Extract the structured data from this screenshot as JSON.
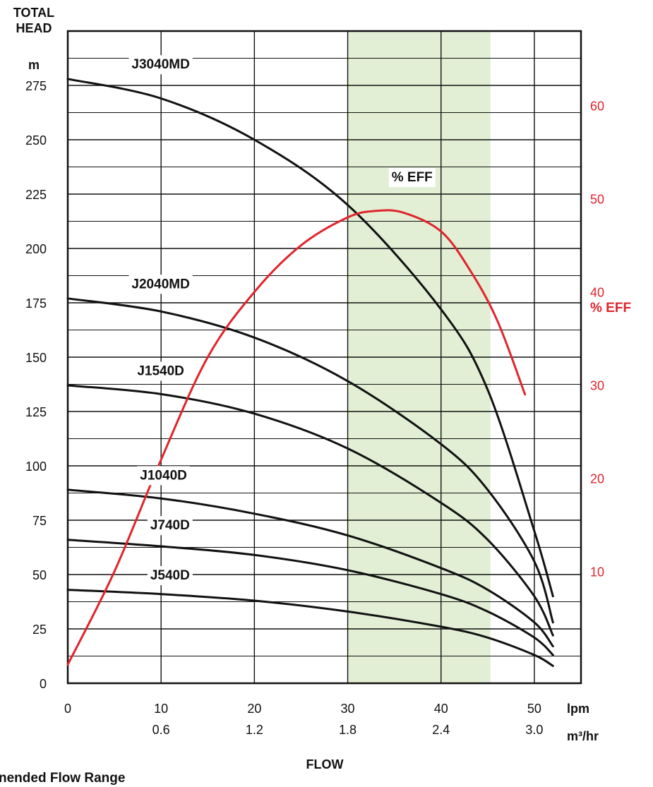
{
  "chart_data": {
    "type": "line",
    "y_axis": {
      "title_lines": [
        "TOTAL",
        "HEAD"
      ],
      "unit": "m",
      "ticks": [
        0,
        25,
        50,
        75,
        100,
        125,
        150,
        175,
        200,
        225,
        250,
        275
      ],
      "range": [
        0,
        300
      ]
    },
    "y2_axis": {
      "title": "% EFF",
      "ticks": [
        10,
        20,
        30,
        40,
        50,
        60
      ],
      "range": [
        -2,
        68
      ]
    },
    "x_axis": {
      "title": "FLOW",
      "unit_primary": "lpm",
      "unit_secondary": "m³/hr",
      "ticks_primary": [
        0,
        10,
        20,
        30,
        40,
        50
      ],
      "ticks_secondary": [
        "0.6",
        "1.2",
        "1.8",
        "2.4",
        "3.0"
      ],
      "range": [
        0,
        55
      ]
    },
    "recommended_flow_range": [
      30,
      45.3
    ],
    "series": [
      {
        "name": "J3040MD",
        "x": [
          0,
          10,
          20,
          30,
          40,
          45,
          50,
          52
        ],
        "y": [
          278,
          269,
          250,
          220,
          172,
          135,
          70,
          40
        ],
        "label_x": 3.3,
        "label_y": 285
      },
      {
        "name": "J2040MD",
        "x": [
          0,
          10,
          20,
          30,
          40,
          45,
          50,
          52
        ],
        "y": [
          177,
          171,
          159,
          139,
          110,
          89,
          56,
          28
        ],
        "label_x": 3.3,
        "label_y": 184
      },
      {
        "name": "J1540D",
        "x": [
          0,
          10,
          20,
          30,
          40,
          45,
          50,
          52
        ],
        "y": [
          137,
          133,
          124,
          108,
          83,
          66,
          40,
          22
        ],
        "label_x": 3.3,
        "label_y": 144
      },
      {
        "name": "J1040D",
        "x": [
          0,
          10,
          20,
          30,
          40,
          45,
          50,
          52
        ],
        "y": [
          89,
          85,
          78,
          68,
          53,
          43,
          28,
          17
        ],
        "label_x": 3.6,
        "label_y": 96
      },
      {
        "name": "J740D",
        "x": [
          0,
          10,
          20,
          30,
          40,
          45,
          50,
          52
        ],
        "y": [
          66,
          63,
          59,
          52,
          41,
          33,
          21,
          13
        ],
        "label_x": 4.3,
        "label_y": 73
      },
      {
        "name": "J540D",
        "x": [
          0,
          10,
          20,
          30,
          40,
          45,
          50,
          52
        ],
        "y": [
          43,
          41,
          38,
          33,
          26,
          21,
          13,
          8
        ],
        "label_x": 4.3,
        "label_y": 50
      }
    ],
    "efficiency_series": {
      "name": "% EFF",
      "label_x": 36.9,
      "label_y": 52.4,
      "x": [
        0,
        5,
        10,
        15,
        20,
        25,
        30,
        33,
        36,
        40,
        43,
        46,
        49
      ],
      "y": [
        0,
        10,
        22,
        33,
        40,
        45,
        48,
        48.7,
        48.5,
        46.5,
        42.5,
        37,
        29
      ]
    },
    "footnote": "nended Flow Range"
  }
}
